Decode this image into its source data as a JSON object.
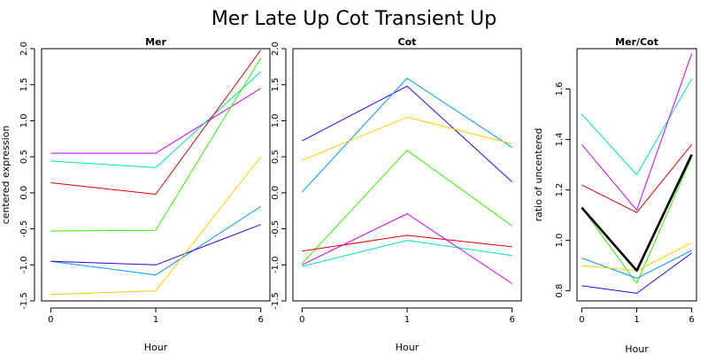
{
  "title": "Mer Late Up Cot Transient Up",
  "chart_data": [
    {
      "type": "line",
      "title": "Mer",
      "xlabel": "Hour",
      "ylabel": "centered expression",
      "categories": [
        "0",
        "1",
        "6"
      ],
      "yticks": [
        "-1.5",
        "-1.0",
        "-0.5",
        "0.0",
        "0.5",
        "1.0",
        "1.5",
        "2.0"
      ],
      "ylim": [
        -1.5,
        2.0
      ],
      "grid": false,
      "series": [
        {
          "color": "#cc00ff",
          "values": [
            0.55,
            0.55,
            1.45
          ]
        },
        {
          "color": "#00e5a0",
          "values": [
            0.44,
            0.35,
            1.68
          ]
        },
        {
          "color": "#dd0000",
          "values": [
            0.14,
            -0.02,
            1.98
          ]
        },
        {
          "color": "#33ee00",
          "values": [
            -0.53,
            -0.52,
            1.87
          ]
        },
        {
          "color": "#0099ff",
          "values": [
            -0.95,
            -1.14,
            -0.19
          ]
        },
        {
          "color": "#3300ee",
          "values": [
            -0.95,
            -1.0,
            -0.44
          ]
        },
        {
          "color": "#ffcc00",
          "values": [
            -1.41,
            -1.36,
            0.5
          ]
        }
      ]
    },
    {
      "type": "line",
      "title": "Cot",
      "xlabel": "Hour",
      "ylabel": "",
      "categories": [
        "0",
        "1",
        "6"
      ],
      "yticks": [
        "-1.5",
        "-1.0",
        "-0.5",
        "0.0",
        "0.5",
        "1.0",
        "1.5",
        "2.0"
      ],
      "ylim": [
        -1.5,
        2.0
      ],
      "grid": false,
      "series": [
        {
          "color": "#3300ee",
          "values": [
            0.72,
            1.48,
            0.15
          ]
        },
        {
          "color": "#0099ff",
          "values": [
            0.01,
            1.59,
            0.63
          ]
        },
        {
          "color": "#ffcc00",
          "values": [
            0.45,
            1.05,
            0.68
          ]
        },
        {
          "color": "#33ee00",
          "values": [
            -0.98,
            0.59,
            -0.46
          ]
        },
        {
          "color": "#dd0000",
          "values": [
            -0.81,
            -0.59,
            -0.75
          ]
        },
        {
          "color": "#00e5a0",
          "values": [
            -1.02,
            -0.66,
            -0.87
          ]
        },
        {
          "color": "#cc00ff",
          "values": [
            -1.0,
            -0.29,
            -1.26
          ]
        }
      ]
    },
    {
      "type": "line",
      "title": "Mer/Cot",
      "xlabel": "Hour",
      "ylabel": "ratio of uncentered",
      "categories": [
        "0",
        "1",
        "6"
      ],
      "yticks": [
        "0.8",
        "1.0",
        "1.2",
        "1.4",
        "1.6"
      ],
      "ylim": [
        0.76,
        1.76
      ],
      "grid": false,
      "series": [
        {
          "color": "#00e5a0",
          "values": [
            1.5,
            1.26,
            1.64
          ]
        },
        {
          "color": "#cc00ff",
          "values": [
            1.38,
            1.12,
            1.74
          ]
        },
        {
          "color": "#dd0000",
          "values": [
            1.22,
            1.11,
            1.38
          ]
        },
        {
          "color": "#33ee00",
          "values": [
            1.13,
            0.83,
            1.33
          ]
        },
        {
          "color": "#0099ff",
          "values": [
            0.93,
            0.85,
            0.96
          ]
        },
        {
          "color": "#ffcc00",
          "values": [
            0.9,
            0.88,
            0.99
          ]
        },
        {
          "color": "#3300ee",
          "values": [
            0.82,
            0.79,
            0.95
          ]
        },
        {
          "color": "#000000",
          "values": [
            1.13,
            0.88,
            1.34
          ],
          "bold": true
        }
      ]
    }
  ]
}
